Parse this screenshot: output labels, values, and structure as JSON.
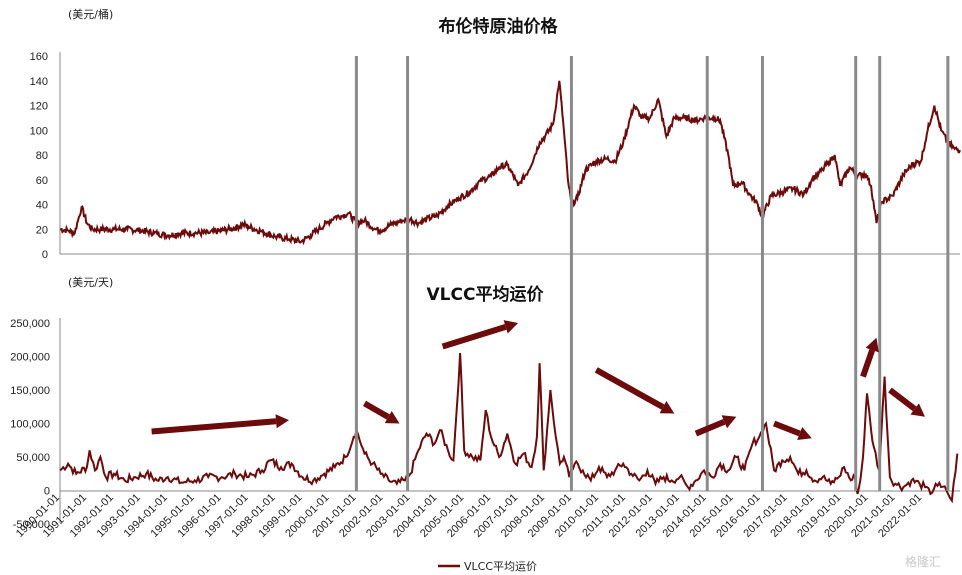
{
  "chart_data": [
    {
      "type": "line",
      "title": "布伦特原油价格",
      "ylabel": "(美元/桶)",
      "ylim": [
        0,
        160
      ],
      "yticks": [
        0,
        20,
        40,
        60,
        80,
        100,
        120,
        140,
        160
      ],
      "xlim": [
        1990.0,
        2023.4
      ],
      "color": "#6b0b0b",
      "series": [
        {
          "x": [
            1990.0,
            1990.3,
            1990.55,
            1990.7,
            1990.8,
            1991.0,
            1991.2,
            1991.5,
            1992.0,
            1992.5,
            1993.0,
            1993.5,
            1994.0,
            1994.5,
            1995.0,
            1995.5,
            1996.0,
            1996.5,
            1996.8,
            1997.0,
            1997.5,
            1998.0,
            1998.5,
            1998.95,
            1999.3,
            1999.6,
            1999.9,
            2000.2,
            2000.5,
            2000.7,
            2001.0,
            2001.3,
            2001.7,
            2001.9,
            2002.3,
            2002.7,
            2003.0,
            2003.3,
            2003.6,
            2004.0,
            2004.4,
            2004.8,
            2005.2,
            2005.6,
            2006.0,
            2006.3,
            2006.6,
            2006.9,
            2007.0,
            2007.4,
            2007.8,
            2008.0,
            2008.3,
            2008.53,
            2008.7,
            2008.85,
            2008.98,
            2009.2,
            2009.5,
            2009.9,
            2010.3,
            2010.6,
            2010.9,
            2011.3,
            2011.6,
            2011.9,
            2012.2,
            2012.5,
            2012.8,
            2013.2,
            2013.6,
            2013.9,
            2014.3,
            2014.5,
            2014.8,
            2014.98,
            2015.3,
            2015.6,
            2015.9,
            2016.05,
            2016.4,
            2016.8,
            2017.2,
            2017.6,
            2017.9,
            2018.3,
            2018.75,
            2018.95,
            2019.3,
            2019.6,
            2019.9,
            2020.1,
            2020.3,
            2020.5,
            2020.9,
            2021.3,
            2021.6,
            2021.95,
            2022.2,
            2022.45,
            2022.7,
            2022.95,
            2023.2,
            2023.4
          ],
          "y": [
            20,
            19,
            17,
            30,
            38,
            25,
            20,
            20,
            20,
            20,
            19,
            17,
            15,
            17,
            17,
            17,
            19,
            21,
            24,
            22,
            18,
            14,
            12,
            10,
            15,
            20,
            25,
            30,
            31,
            33,
            25,
            27,
            20,
            19,
            24,
            27,
            28,
            25,
            28,
            31,
            39,
            45,
            50,
            59,
            63,
            70,
            72,
            60,
            55,
            68,
            90,
            95,
            105,
            140,
            100,
            60,
            40,
            45,
            68,
            75,
            77,
            75,
            90,
            120,
            110,
            110,
            125,
            95,
            110,
            110,
            108,
            110,
            110,
            108,
            80,
            55,
            58,
            48,
            40,
            30,
            47,
            50,
            53,
            48,
            60,
            68,
            80,
            55,
            70,
            63,
            65,
            55,
            25,
            42,
            47,
            64,
            72,
            75,
            100,
            120,
            100,
            90,
            85,
            84
          ]
        }
      ]
    },
    {
      "type": "line",
      "title": "VLCC平均运价",
      "ylabel": "(美元/天)",
      "ylim": [
        -50000,
        250000
      ],
      "yticks": [
        -50000,
        0,
        50000,
        100000,
        150000,
        200000,
        250000
      ],
      "xlim": [
        1990.0,
        2023.4
      ],
      "color": "#6b0b0b",
      "legend": "VLCC平均运价",
      "x_tick_labels": [
        "1990-01-01",
        "1991-01-01",
        "1992-01-01",
        "1993-01-01",
        "1994-01-01",
        "1995-01-01",
        "1996-01-01",
        "1997-01-01",
        "1998-01-01",
        "1999-01-01",
        "2000-01-01",
        "2001-01-01",
        "2002-01-01",
        "2003-01-01",
        "2004-01-01",
        "2005-01-01",
        "2006-01-01",
        "2007-01-01",
        "2008-01-01",
        "2009-01-01",
        "2010-01-01",
        "2011-01-01",
        "2012-01-01",
        "2013-01-01",
        "2014-01-01",
        "2015-01-01",
        "2016-01-01",
        "2017-01-01",
        "2018-01-01",
        "2019-01-01",
        "2020-01-01",
        "2021-01-01",
        "2022-01-01"
      ],
      "series": [
        {
          "x": [
            1990.0,
            1990.3,
            1990.6,
            1991.0,
            1991.1,
            1991.3,
            1991.5,
            1991.7,
            1992.0,
            1992.4,
            1992.8,
            1993.2,
            1993.6,
            1994.0,
            1994.5,
            1995.0,
            1995.5,
            1996.0,
            1996.5,
            1997.0,
            1997.5,
            1997.8,
            1998.2,
            1998.6,
            1999.0,
            1999.4,
            1999.8,
            2000.2,
            2000.6,
            2000.9,
            2001.0,
            2001.3,
            2001.6,
            2001.9,
            2002.2,
            2002.5,
            2002.8,
            2003.0,
            2003.3,
            2003.6,
            2003.9,
            2004.1,
            2004.4,
            2004.6,
            2004.85,
            2005.0,
            2005.3,
            2005.6,
            2005.8,
            2006.0,
            2006.3,
            2006.6,
            2006.9,
            2007.2,
            2007.5,
            2007.7,
            2007.8,
            2007.95,
            2008.2,
            2008.4,
            2008.55,
            2008.7,
            2008.9,
            2009.1,
            2009.4,
            2009.7,
            2010.0,
            2010.3,
            2010.6,
            2010.9,
            2011.2,
            2011.5,
            2011.8,
            2012.1,
            2012.4,
            2012.7,
            2013.0,
            2013.3,
            2013.6,
            2013.9,
            2014.2,
            2014.5,
            2014.8,
            2015.1,
            2015.4,
            2015.7,
            2015.95,
            2016.2,
            2016.5,
            2016.8,
            2017.1,
            2017.4,
            2017.7,
            2018.0,
            2018.3,
            2018.6,
            2018.9,
            2019.1,
            2019.35,
            2019.5,
            2019.6,
            2019.7,
            2019.8,
            2019.95,
            2020.1,
            2020.2,
            2020.4,
            2020.6,
            2020.8,
            2021.0,
            2021.3,
            2021.6,
            2021.9,
            2022.1,
            2022.3,
            2022.5,
            2022.7,
            2022.9,
            2023.1,
            2023.3
          ],
          "y": [
            30000,
            40000,
            25000,
            35000,
            60000,
            30000,
            50000,
            20000,
            25000,
            15000,
            20000,
            25000,
            15000,
            20000,
            12000,
            15000,
            20000,
            20000,
            25000,
            20000,
            30000,
            45000,
            35000,
            40000,
            20000,
            15000,
            25000,
            35000,
            50000,
            80000,
            90000,
            55000,
            40000,
            25000,
            15000,
            10000,
            15000,
            25000,
            60000,
            85000,
            70000,
            90000,
            60000,
            45000,
            205000,
            60000,
            50000,
            45000,
            120000,
            80000,
            50000,
            85000,
            40000,
            55000,
            35000,
            80000,
            190000,
            30000,
            150000,
            80000,
            40000,
            50000,
            20000,
            40000,
            30000,
            15000,
            35000,
            20000,
            30000,
            40000,
            25000,
            15000,
            30000,
            10000,
            20000,
            15000,
            20000,
            5000,
            15000,
            30000,
            20000,
            40000,
            30000,
            50000,
            30000,
            70000,
            80000,
            100000,
            30000,
            45000,
            50000,
            25000,
            30000,
            15000,
            20000,
            10000,
            20000,
            35000,
            15000,
            20000,
            -5000,
            15000,
            50000,
            145000,
            90000,
            65000,
            30000,
            170000,
            20000,
            10000,
            5000,
            15000,
            10000,
            5000,
            -5000,
            10000,
            5000,
            0,
            -15000,
            55000
          ]
        }
      ]
    }
  ],
  "legend": {
    "label": "VLCC平均运价"
  },
  "watermark": "格隆汇"
}
